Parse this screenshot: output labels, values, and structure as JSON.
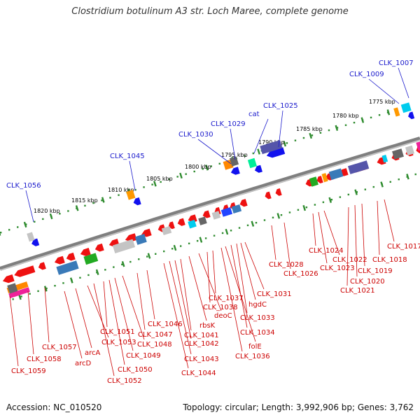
{
  "title": "Clostridium botulinum A3 str. Loch Maree, complete genome",
  "footer": {
    "accession": "Accession: NC_010520",
    "topology": "Topology: circular; Length: 3,992,906 bp; Genes: 3,762"
  },
  "colors": {
    "background": "#ffffff",
    "backbone": "#7f7f7f",
    "tick": "#2e8b2e",
    "forward_gene": "#ee1111",
    "reverse_gene": "#1111ee",
    "forward_label": "#cc0000",
    "reverse_label": "#1a1acc",
    "axis_label": "#000000"
  },
  "scale_labels": [
    "1820 kbp",
    "1815 kbp",
    "1810 kbp",
    "1805 kbp",
    "1800 kbp",
    "1795 kbp",
    "1790 kbp",
    "1785 kbp",
    "1780 kbp",
    "1775 kbp"
  ],
  "reverse_labels": [
    "CLK_1056",
    "CLK_1045",
    "CLK_1030",
    "CLK_1029",
    "cat",
    "CLK_1025",
    "CLK_1009",
    "CLK_1007"
  ],
  "forward_labels": [
    "CLK_1059",
    "CLK_1058",
    "CLK_1057",
    "arcD",
    "arcA",
    "CLK_1053",
    "CLK_1052",
    "CLK_1051",
    "CLK_1050",
    "CLK_1049",
    "CLK_1048",
    "CLK_1047",
    "CLK_1046",
    "CLK_1044",
    "CLK_1043",
    "CLK_1042",
    "CLK_1041",
    "rbsK",
    "deoC",
    "CLK_1038",
    "CLK_1037",
    "CLK_1036",
    "folE",
    "CLK_1034",
    "CLK_1033",
    "hgdC",
    "CLK_1031",
    "CLK_1028",
    "CLK_1026",
    "CLK_1024",
    "CLK_1023",
    "CLK_1022",
    "CLK_1021",
    "CLK_1020",
    "CLK_1019",
    "CLK_1018",
    "CLK_1017"
  ]
}
